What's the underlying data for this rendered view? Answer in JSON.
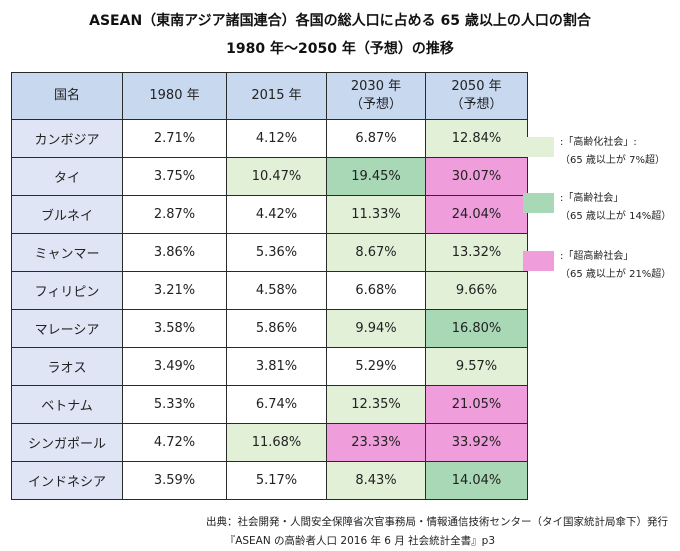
{
  "title": {
    "line1": "ASEAN（東南アジア諸国連合）各国の総人口に占める 65 歳以上の人口の割合",
    "line2": "1980 年〜2050 年（予想）の推移"
  },
  "table": {
    "headers": [
      {
        "line1": "国名",
        "line2": ""
      },
      {
        "line1": "1980 年",
        "line2": ""
      },
      {
        "line1": "2015 年",
        "line2": ""
      },
      {
        "line1": "2030 年",
        "line2": "（予想）"
      },
      {
        "line1": "2050 年",
        "line2": "（予想）"
      }
    ],
    "rows": [
      {
        "name": "カンボジア",
        "values": [
          "2.71%",
          "4.12%",
          "6.87%",
          "12.84%"
        ]
      },
      {
        "name": "タイ",
        "values": [
          "3.75%",
          "10.47%",
          "19.45%",
          "30.07%"
        ]
      },
      {
        "name": "ブルネイ",
        "values": [
          "2.87%",
          "4.42%",
          "11.33%",
          "24.04%"
        ]
      },
      {
        "name": "ミャンマー",
        "values": [
          "3.86%",
          "5.36%",
          "8.67%",
          "13.32%"
        ]
      },
      {
        "name": "フィリピン",
        "values": [
          "3.21%",
          "4.58%",
          "6.68%",
          "9.66%"
        ]
      },
      {
        "name": "マレーシア",
        "values": [
          "3.58%",
          "5.86%",
          "9.94%",
          "16.80%"
        ]
      },
      {
        "name": "ラオス",
        "values": [
          "3.49%",
          "3.81%",
          "5.29%",
          "9.57%"
        ]
      },
      {
        "name": "ベトナム",
        "values": [
          "5.33%",
          "6.74%",
          "12.35%",
          "21.05%"
        ]
      },
      {
        "name": "シンガポール",
        "values": [
          "4.72%",
          "11.68%",
          "23.33%",
          "33.92%"
        ]
      },
      {
        "name": "インドネシア",
        "values": [
          "3.59%",
          "5.17%",
          "8.43%",
          "14.04%"
        ]
      }
    ]
  },
  "legend": [
    {
      "title": ":「高齢化社会」:",
      "sub": "（65 歳以上が 7%超）",
      "color": "#e1f0d7"
    },
    {
      "title": ":「高齢社会」",
      "sub": "（65 歳以上が 14%超）",
      "color": "#a8d8b6"
    },
    {
      "title": ":「超高齢社会」",
      "sub": "（65 歳以上が 21%超）",
      "color": "#ef9edb"
    }
  ],
  "source": {
    "line1": "出典：社会開発・人間安全保障省次官事務局・情報通信技術センター（タイ国家統計局傘下）発行",
    "line2": "『ASEAN の高齢者人口 2016 年 6 月 社会統計全書』p3"
  },
  "colors": {
    "header_bg": "#c7d8ef",
    "name_bg": "#dfe5f4",
    "aging": "#e1f0d7",
    "aged": "#a8d8b6",
    "super_aged": "#ef9edb"
  }
}
